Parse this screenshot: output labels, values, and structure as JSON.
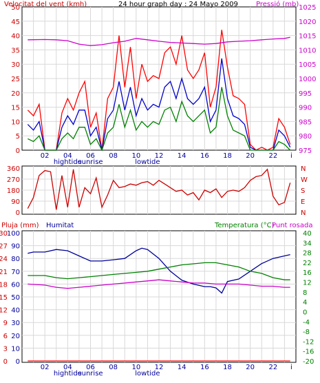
{
  "chart_data": [
    {
      "id": "wind-pressure",
      "type": "line",
      "title": "24 hour graph day : 24 Mayo 2009",
      "left_axis_title": "Velocitat del vent (kmh)",
      "right_axis_title": "Pressió (mb)",
      "left_ylim": [
        0,
        50
      ],
      "left_ticks": [
        "0",
        "5",
        "10",
        "15",
        "20",
        "25",
        "30",
        "35",
        "40",
        "45",
        "50"
      ],
      "right_ylim": [
        975,
        1025
      ],
      "right_ticks": [
        "975",
        "980",
        "985",
        "990",
        "995",
        "1000",
        "1005",
        "1010",
        "1015",
        "1020",
        "1025"
      ],
      "x_ticks": [
        "02",
        "04",
        "06",
        "08",
        "10",
        "12",
        "14",
        "16",
        "18",
        "20",
        "22",
        "i"
      ],
      "x_markers": [
        "hightide",
        "sunrise",
        "lowtide"
      ],
      "grid": true,
      "colors": {
        "gust": "#ff0000",
        "average": "#0000cc",
        "low": "#008000",
        "pressure": "#cc00cc"
      },
      "series": [
        {
          "role": "gust",
          "x": [
            0.5,
            1,
            1.5,
            2,
            2.5,
            3,
            3.5,
            4,
            4.5,
            5,
            5.5,
            6,
            6.5,
            7,
            7.5,
            8,
            8.5,
            9,
            9.5,
            10,
            10.5,
            11,
            11.5,
            12,
            12.5,
            13,
            13.5,
            14,
            14.5,
            15,
            15.5,
            16,
            16.5,
            17,
            17.5,
            18,
            18.5,
            19,
            19.5,
            20,
            20.5,
            21,
            21.5,
            22,
            22.5,
            23,
            23.5
          ],
          "values": [
            14,
            12,
            16,
            0,
            0,
            0,
            13,
            18,
            14,
            20,
            24,
            8,
            13,
            0,
            18,
            22,
            40,
            22,
            36,
            18,
            30,
            24,
            26,
            25,
            34,
            36,
            30,
            40,
            28,
            25,
            28,
            34,
            15,
            22,
            42,
            29,
            19,
            18,
            16,
            2,
            0,
            1,
            0,
            1,
            11,
            8,
            2
          ]
        },
        {
          "role": "average",
          "x": [
            0.5,
            1,
            1.5,
            2,
            2.5,
            3,
            3.5,
            4,
            4.5,
            5,
            5.5,
            6,
            6.5,
            7,
            7.5,
            8,
            8.5,
            9,
            9.5,
            10,
            10.5,
            11,
            11.5,
            12,
            12.5,
            13,
            13.5,
            14,
            14.5,
            15,
            15.5,
            16,
            16.5,
            17,
            17.5,
            18,
            18.5,
            19,
            19.5,
            20,
            20.5,
            21,
            21.5,
            22,
            22.5,
            23,
            23.5
          ],
          "values": [
            9,
            7,
            10,
            0,
            0,
            0,
            8,
            12,
            9,
            14,
            14,
            5,
            8,
            0,
            11,
            14,
            24,
            14,
            22,
            12,
            18,
            14,
            16,
            15,
            22,
            24,
            18,
            25,
            18,
            16,
            18,
            22,
            10,
            14,
            32,
            18,
            12,
            11,
            9,
            1,
            0,
            0,
            0,
            0,
            7,
            5,
            1
          ]
        },
        {
          "role": "low",
          "x": [
            0.5,
            1,
            1.5,
            2,
            2.5,
            3,
            3.5,
            4,
            4.5,
            5,
            5.5,
            6,
            6.5,
            7,
            7.5,
            8,
            8.5,
            9,
            9.5,
            10,
            10.5,
            11,
            11.5,
            12,
            12.5,
            13,
            13.5,
            14,
            14.5,
            15,
            15.5,
            16,
            16.5,
            17,
            17.5,
            18,
            18.5,
            19,
            19.5,
            20,
            20.5,
            21,
            21.5,
            22,
            22.5,
            23,
            23.5
          ],
          "values": [
            4,
            3,
            5,
            0,
            0,
            0,
            4,
            6,
            4,
            8,
            8,
            2,
            4,
            0,
            6,
            8,
            16,
            8,
            14,
            7,
            10,
            8,
            10,
            9,
            14,
            15,
            10,
            17,
            12,
            10,
            12,
            14,
            6,
            8,
            22,
            12,
            7,
            6,
            5,
            0,
            0,
            0,
            0,
            0,
            3,
            2,
            0
          ]
        },
        {
          "role": "pressure",
          "x": [
            0.5,
            2,
            3,
            4,
            5,
            6,
            7,
            8,
            9,
            10,
            11,
            12,
            13,
            14,
            15,
            16,
            17,
            18,
            19,
            20,
            21,
            22,
            23,
            23.5
          ],
          "values": [
            1013.5,
            1013.6,
            1013.5,
            1013.2,
            1012,
            1011.5,
            1011.8,
            1012.5,
            1013,
            1014,
            1013.5,
            1013,
            1012.6,
            1012.4,
            1012.2,
            1012,
            1012.2,
            1012.8,
            1013,
            1013.2,
            1013.5,
            1013.8,
            1014,
            1014.4
          ]
        }
      ]
    },
    {
      "id": "wind-direction",
      "type": "line",
      "ylim": [
        0,
        360
      ],
      "left_ticks": [
        "0",
        "90",
        "180",
        "270",
        "360"
      ],
      "right_labels": [
        "N",
        "W",
        "S",
        "E",
        "N"
      ],
      "color": "#cc0000",
      "series": [
        {
          "role": "direction",
          "x": [
            0.5,
            1,
            1.5,
            2,
            2.5,
            3,
            3.5,
            4,
            4.5,
            5,
            5.5,
            6,
            6.5,
            7,
            7.5,
            8,
            8.5,
            9,
            9.5,
            10,
            10.5,
            11,
            11.5,
            12,
            12.5,
            13,
            13.5,
            14,
            14.5,
            15,
            15.5,
            16,
            16.5,
            17,
            17.5,
            18,
            18.5,
            19,
            19.5,
            20,
            20.5,
            21,
            21.5,
            22,
            22.5,
            23,
            23.5
          ],
          "values": [
            30,
            120,
            300,
            340,
            330,
            20,
            300,
            40,
            350,
            40,
            200,
            150,
            280,
            40,
            140,
            260,
            200,
            210,
            230,
            220,
            240,
            250,
            220,
            260,
            230,
            200,
            170,
            180,
            140,
            160,
            100,
            180,
            160,
            190,
            120,
            170,
            180,
            170,
            200,
            260,
            290,
            300,
            350,
            130,
            60,
            80,
            240
          ]
        }
      ]
    },
    {
      "id": "rain-humidity-temp",
      "type": "line",
      "left_title_1": "Pluja (mm)",
      "left_title_2": "Humitat",
      "right_title_1": "Temperatura (°C)",
      "right_title_2": "Punt rosada",
      "rain_ticks": [
        "0",
        "3",
        "6",
        "9",
        "12",
        "15",
        "18",
        "21",
        "24",
        "27",
        "30"
      ],
      "humidity_ticks": [
        "0",
        "10",
        "20",
        "30",
        "40",
        "50",
        "60",
        "70",
        "80",
        "90",
        "100"
      ],
      "temp_ticks": [
        "-20",
        "-16",
        "-12",
        "-8",
        "-4",
        "0",
        "4",
        "8",
        "12",
        "16",
        "22",
        "28",
        "34",
        "40"
      ],
      "x_ticks": [
        "02",
        "04",
        "06",
        "08",
        "10",
        "12",
        "14",
        "16",
        "18",
        "20",
        "22",
        "i"
      ],
      "x_markers": [
        "hightide",
        "sunrise",
        "lowtide"
      ],
      "humidity_ylim": [
        0,
        100
      ],
      "rain_ylim": [
        0,
        30
      ],
      "temp_ylim": [
        -20,
        40
      ],
      "colors": {
        "rain": "#ff0000",
        "humidity": "#000099",
        "temperature": "#008000",
        "dewpoint": "#cc00cc"
      },
      "series": [
        {
          "role": "humidity",
          "x": [
            0.5,
            1,
            2,
            3,
            4,
            5,
            6,
            7,
            8,
            9,
            10,
            10.5,
            11,
            12,
            13,
            14,
            15,
            16,
            16.5,
            17,
            17.5,
            18,
            19,
            20,
            21,
            22,
            23,
            23.5
          ],
          "values": [
            84,
            85,
            85,
            87,
            86,
            82,
            78,
            78,
            79,
            80,
            86,
            88,
            87,
            80,
            70,
            63,
            60,
            58,
            58,
            57,
            53,
            62,
            64,
            70,
            76,
            80,
            82,
            83
          ]
        },
        {
          "role": "temperature",
          "x": [
            0.5,
            2,
            3,
            4,
            5,
            6,
            7,
            8,
            9,
            10,
            11,
            12,
            13,
            14,
            15,
            16,
            17,
            18,
            19,
            20,
            21,
            22,
            23,
            23.5
          ],
          "values": [
            20,
            20,
            19,
            18.5,
            19,
            19.5,
            20,
            20.5,
            21,
            21.5,
            22,
            23,
            24,
            25,
            25.5,
            26,
            26,
            25,
            24,
            22,
            21,
            19,
            18,
            18
          ]
        },
        {
          "role": "dewpoint",
          "x": [
            0.5,
            2,
            3,
            4,
            5,
            6,
            7,
            8,
            9,
            10,
            11,
            12,
            13,
            14,
            15,
            16,
            17,
            18,
            19,
            20,
            21,
            22,
            23,
            23.5
          ],
          "values": [
            16,
            15.5,
            14.5,
            14,
            14.5,
            15,
            15.5,
            16,
            16.5,
            17,
            17.5,
            18,
            17.5,
            17,
            16.5,
            16.5,
            16,
            16,
            16,
            15.5,
            15,
            15,
            14.5,
            14.5
          ]
        },
        {
          "role": "rain",
          "x": [
            0.5,
            23.5
          ],
          "values": [
            0,
            0
          ]
        }
      ]
    }
  ]
}
